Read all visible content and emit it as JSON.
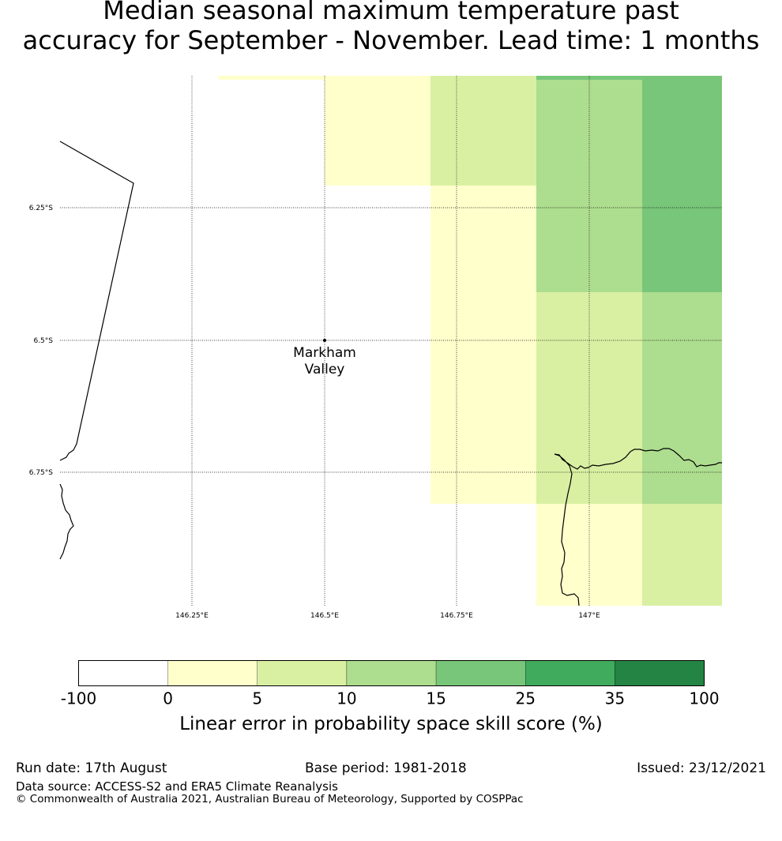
{
  "title": {
    "line1": "Median seasonal maximum temperature past",
    "line2": "accuracy for September - November. Lead time: 1 months"
  },
  "map": {
    "lat_labels": [
      "6.25°S",
      "6.5°S",
      "6.75°S"
    ],
    "lon_labels": [
      "146.25°E",
      "146.5°E",
      "146.75°E",
      "147°E"
    ],
    "place": {
      "name_line1": "Markham",
      "name_line2": "Valley",
      "lon": 146.5,
      "lat": -6.5
    },
    "land_color": "#ffffff",
    "coastline_color": "#000000"
  },
  "colorbar": {
    "ticks": [
      "-100",
      "0",
      "5",
      "10",
      "15",
      "25",
      "35",
      "100"
    ],
    "colors": [
      "#ffffff",
      "#ffffcc",
      "#d9f0a3",
      "#addd8e",
      "#78c679",
      "#41ab5d",
      "#238443"
    ],
    "label": "Linear error in probability space skill score (%)"
  },
  "footer": {
    "run_date": "Run date: 17th August",
    "base_period": "Base period: 1981-2018",
    "issued": "Issued: 23/12/2021",
    "data_source": "Data source: ACCESS-S2 and ERA5 Climate Reanalysis",
    "copyright": "© Commonwealth of Australia 2021, Australian Bureau of Meteorology, Supported by COSPPac"
  }
}
